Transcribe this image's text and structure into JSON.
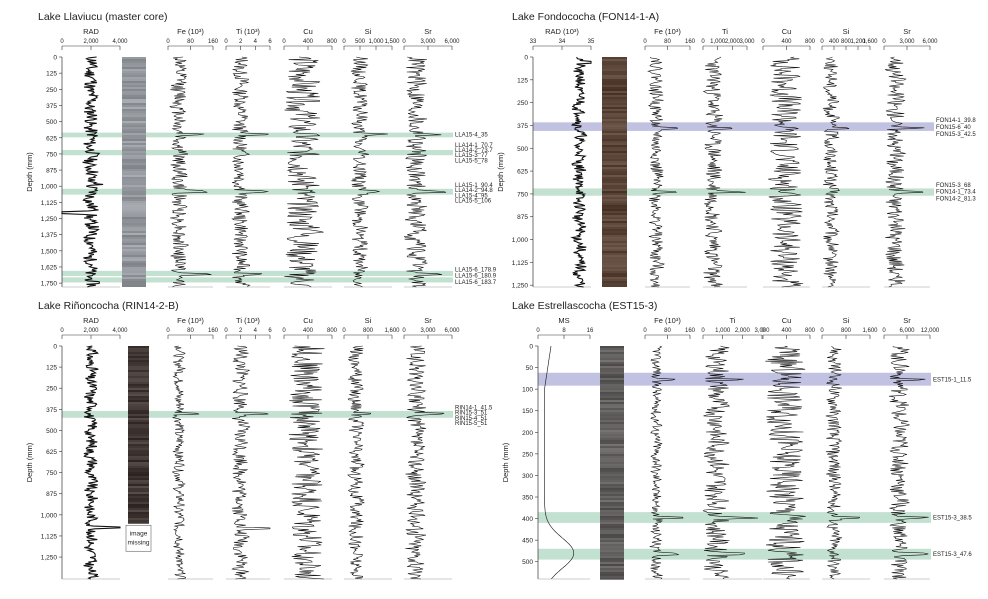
{
  "colors": {
    "green_band": "#b9dcc8",
    "blue_band": "#b6b6dc",
    "trace": "#111111",
    "axis": "#333333"
  },
  "chart_data": [
    {
      "type": "line",
      "title": "Lake Llaviucu (master core)",
      "ylabel": "Depth (mm)",
      "ylim": [
        0,
        1780
      ],
      "yticks": [
        0,
        125,
        250,
        375,
        500,
        625,
        750,
        875,
        "1,000",
        "1,125",
        "1,250",
        "1,375",
        "1,500",
        "1,625",
        "1,750"
      ],
      "ytick_values": [
        0,
        125,
        250,
        375,
        500,
        625,
        750,
        875,
        1000,
        1125,
        1250,
        1375,
        1500,
        1625,
        1750
      ],
      "core_image": "core photo",
      "series": [
        {
          "name": "RAD",
          "xlim": [
            0,
            4000
          ],
          "xticks": [
            "0",
            "2,000",
            "4,000"
          ],
          "baseline": 2000,
          "amp": 0.12,
          "seed": 11,
          "spikes": [
            [
              1205,
              -0.45
            ],
            [
              980,
              0.15
            ]
          ]
        },
        {
          "name": "Fe (10³)",
          "xlim": [
            0,
            160
          ],
          "xticks": [
            "0",
            "80",
            "160"
          ],
          "baseline": 40,
          "amp": 0.18,
          "seed": 12,
          "spikes": [
            [
              600,
              0.45
            ],
            [
              1040,
              0.5
            ],
            [
              1680,
              0.6
            ]
          ]
        },
        {
          "name": "Ti (10³)",
          "xlim": [
            0,
            6
          ],
          "xticks": [
            "0",
            "2",
            "4",
            "6"
          ],
          "baseline": 2,
          "amp": 0.18,
          "seed": 13,
          "spikes": [
            [
              600,
              0.5
            ],
            [
              1040,
              0.55
            ],
            [
              1680,
              0.6
            ]
          ]
        },
        {
          "name": "Cu",
          "xlim": [
            0,
            800
          ],
          "xticks": [
            "0",
            "400",
            "800"
          ],
          "baseline": 300,
          "amp": 0.35,
          "seed": 14,
          "spikes": [
            [
              1000,
              0.4
            ],
            [
              1350,
              0.5
            ]
          ]
        },
        {
          "name": "Si",
          "xlim": [
            0,
            1500
          ],
          "xticks": [
            "0",
            "500",
            "1,000",
            "1,500"
          ],
          "baseline": 500,
          "amp": 0.16,
          "seed": 15,
          "spikes": [
            [
              600,
              0.4
            ],
            [
              1040,
              0.3
            ]
          ]
        },
        {
          "name": "Sr",
          "xlim": [
            0,
            6000
          ],
          "xticks": [
            "0",
            "3,000",
            "6,000"
          ],
          "baseline": 1500,
          "amp": 0.22,
          "seed": 16,
          "spikes": [
            [
              600,
              0.5
            ],
            [
              1040,
              0.4
            ],
            [
              1680,
              0.6
            ]
          ]
        }
      ],
      "bands": [
        {
          "from": 585,
          "to": 622,
          "color": "green"
        },
        {
          "from": 720,
          "to": 760,
          "color": "green"
        },
        {
          "from": 1020,
          "to": 1065,
          "color": "green"
        },
        {
          "from": 1655,
          "to": 1695,
          "color": "green"
        },
        {
          "from": 1705,
          "to": 1745,
          "color": "green"
        }
      ],
      "annotations": [
        {
          "text": "LLA15-4_35",
          "depth": 600
        },
        {
          "text": "LLA14-1_70.7",
          "depth": 680
        },
        {
          "text": "LLA14-2_73.7",
          "depth": 720
        },
        {
          "text": "LLA15-3_77",
          "depth": 760
        },
        {
          "text": "LLA15-5_78",
          "depth": 800
        },
        {
          "text": "LLA15-1_90.4",
          "depth": 990
        },
        {
          "text": "LLA14-2_94.8",
          "depth": 1030
        },
        {
          "text": "LLA15-4_95",
          "depth": 1070
        },
        {
          "text": "LLA15-5_106",
          "depth": 1110
        },
        {
          "text": "LLA15-6_178.9",
          "depth": 1645
        },
        {
          "text": "LLA15-6_180.9",
          "depth": 1690
        },
        {
          "text": "LLA15-6_183.7",
          "depth": 1740
        }
      ]
    },
    {
      "type": "line",
      "title": "Lake Fondococha (FON14-1-A)",
      "ylabel": "Depth (mm)",
      "ylim": [
        0,
        1260
      ],
      "yticks": [
        0,
        125,
        250,
        375,
        500,
        625,
        750,
        875,
        "1,000",
        "1,125",
        "1,250"
      ],
      "ytick_values": [
        0,
        125,
        250,
        375,
        500,
        625,
        750,
        875,
        1000,
        1125,
        1250
      ],
      "core_image": "core photo",
      "series": [
        {
          "name": "RAD (10³)",
          "xlim": [
            33,
            35
          ],
          "xticks": [
            "33",
            "34",
            "35"
          ],
          "baseline": 34.6,
          "amp": 0.1,
          "seed": 21,
          "spikes": [
            [
              30,
              0.3
            ]
          ]
        },
        {
          "name": "Fe (10³)",
          "xlim": [
            0,
            160
          ],
          "xticks": [
            "0",
            "80",
            "160"
          ],
          "baseline": 40,
          "amp": 0.15,
          "seed": 22,
          "spikes": [
            [
              390,
              0.4
            ],
            [
              740,
              0.5
            ]
          ]
        },
        {
          "name": "Ti",
          "xlim": [
            0,
            3000
          ],
          "xticks": [
            "0",
            "1,000",
            "2,000",
            "3,000"
          ],
          "baseline": 700,
          "amp": 0.2,
          "seed": 23,
          "spikes": [
            [
              390,
              0.5
            ],
            [
              740,
              0.6
            ]
          ]
        },
        {
          "name": "Cu",
          "xlim": [
            0,
            800
          ],
          "xticks": [
            "0",
            "400",
            "800"
          ],
          "baseline": 380,
          "amp": 0.35,
          "seed": 24,
          "spikes": []
        },
        {
          "name": "Si",
          "xlim": [
            0,
            1600
          ],
          "xticks": [
            "0",
            "400",
            "800",
            "1,200",
            "1,600"
          ],
          "baseline": 300,
          "amp": 0.15,
          "seed": 25,
          "spikes": [
            [
              390,
              0.4
            ]
          ]
        },
        {
          "name": "Sr",
          "xlim": [
            0,
            6000
          ],
          "xticks": [
            "0",
            "3,000",
            "6,000"
          ],
          "baseline": 1500,
          "amp": 0.2,
          "seed": 26,
          "spikes": [
            [
              390,
              0.5
            ],
            [
              740,
              0.6
            ]
          ]
        }
      ],
      "bands": [
        {
          "from": 358,
          "to": 405,
          "color": "blue"
        },
        {
          "from": 720,
          "to": 760,
          "color": "green"
        }
      ],
      "annotations": [
        {
          "text": "FON14-1_39.8",
          "depth": 345
        },
        {
          "text": "FON15-6_40",
          "depth": 383
        },
        {
          "text": "FON15-3_42.5",
          "depth": 421
        },
        {
          "text": "FON15-3_68",
          "depth": 700
        },
        {
          "text": "FON14-1_73.4",
          "depth": 738
        },
        {
          "text": "FON14-2_81.3",
          "depth": 776
        }
      ]
    },
    {
      "type": "line",
      "title": "Lake Riñoncocha (RIN14-2-B)",
      "ylabel": "Depth (mm)",
      "ylim": [
        0,
        1380
      ],
      "yticks": [
        0,
        125,
        250,
        375,
        500,
        625,
        750,
        875,
        "1,000",
        "1,125",
        "1,250"
      ],
      "ytick_values": [
        0,
        125,
        250,
        375,
        500,
        625,
        750,
        875,
        1000,
        1125,
        1250
      ],
      "core_image": "core photo",
      "core_missing_label": [
        "image",
        "missing"
      ],
      "series": [
        {
          "name": "RAD",
          "xlim": [
            0,
            4000
          ],
          "xticks": [
            "0",
            "2,000",
            "4,000"
          ],
          "baseline": 2000,
          "amp": 0.1,
          "seed": 31,
          "spikes": [
            [
              1075,
              0.7
            ]
          ]
        },
        {
          "name": "Fe (10³)",
          "xlim": [
            0,
            160
          ],
          "xticks": [
            "0",
            "80",
            "160"
          ],
          "baseline": 40,
          "amp": 0.12,
          "seed": 32,
          "spikes": [
            [
              400,
              0.4
            ]
          ]
        },
        {
          "name": "Ti (10³)",
          "xlim": [
            0,
            6
          ],
          "xticks": [
            "0",
            "2",
            "4",
            "6"
          ],
          "baseline": 2,
          "amp": 0.18,
          "seed": 33,
          "spikes": [
            [
              400,
              0.5
            ],
            [
              1080,
              0.6
            ]
          ]
        },
        {
          "name": "Cu",
          "xlim": [
            0,
            800
          ],
          "xticks": [
            "0",
            "400",
            "800"
          ],
          "baseline": 380,
          "amp": 0.35,
          "seed": 34,
          "spikes": []
        },
        {
          "name": "Si",
          "xlim": [
            0,
            1600
          ],
          "xticks": [
            "0",
            "800",
            "1,600"
          ],
          "baseline": 400,
          "amp": 0.15,
          "seed": 35,
          "spikes": [
            [
              400,
              0.4
            ]
          ]
        },
        {
          "name": "Sr",
          "xlim": [
            0,
            6000
          ],
          "xticks": [
            "0",
            "3,000",
            "6,000"
          ],
          "baseline": 1500,
          "amp": 0.2,
          "seed": 36,
          "spikes": [
            [
              400,
              0.6
            ]
          ]
        }
      ],
      "bands": [
        {
          "from": 385,
          "to": 425,
          "color": "green"
        }
      ],
      "annotations": [
        {
          "text": "RIN14-1_41.5",
          "depth": 365
        },
        {
          "text": "RIN15-3_51",
          "depth": 395
        },
        {
          "text": "RIN15-4_51",
          "depth": 425
        },
        {
          "text": "RIN15-5_51",
          "depth": 455
        }
      ]
    },
    {
      "type": "line",
      "title": "Lake Estrellascocha (EST15-3)",
      "ylabel": "Depth (mm)",
      "ylim": [
        0,
        540
      ],
      "yticks": [
        0,
        50,
        100,
        150,
        200,
        250,
        300,
        350,
        400,
        450,
        500,
        550
      ],
      "ytick_values": [
        0,
        50,
        100,
        150,
        200,
        250,
        300,
        350,
        400,
        450,
        500,
        550
      ],
      "core_image": "core photo",
      "series": [
        {
          "name": "MS",
          "xlim": [
            0,
            16
          ],
          "xticks": [
            "0",
            "8",
            "16"
          ],
          "baseline": 2,
          "amp": 0.02,
          "seed": 41,
          "spikes": [],
          "smooth": true
        },
        {
          "name": "Fe (10³)",
          "xlim": [
            0,
            160
          ],
          "xticks": [
            "0",
            "80",
            "160"
          ],
          "baseline": 40,
          "amp": 0.12,
          "seed": 42,
          "spikes": [
            [
              78,
              0.5
            ],
            [
              398,
              0.5
            ],
            [
              482,
              0.5
            ]
          ]
        },
        {
          "name": "Ti",
          "xlim": [
            0,
            3000
          ],
          "xticks": [
            "0",
            "1,000",
            "2,000",
            "3,000"
          ],
          "baseline": 700,
          "amp": 0.2,
          "seed": 43,
          "spikes": [
            [
              78,
              0.5
            ],
            [
              398,
              0.6
            ],
            [
              482,
              0.5
            ]
          ]
        },
        {
          "name": "Cu",
          "xlim": [
            0,
            800
          ],
          "xticks": [
            "0",
            "400",
            "800"
          ],
          "baseline": 380,
          "amp": 0.4,
          "seed": 44,
          "spikes": [
            [
              395,
              0.4
            ]
          ]
        },
        {
          "name": "Si",
          "xlim": [
            0,
            1600
          ],
          "xticks": [
            "0",
            "800",
            "1,600"
          ],
          "baseline": 400,
          "amp": 0.15,
          "seed": 45,
          "spikes": [
            [
              398,
              0.5
            ]
          ]
        },
        {
          "name": "Sr",
          "xlim": [
            0,
            12000
          ],
          "xticks": [
            "0",
            "6,000",
            "12,000"
          ],
          "baseline": 4000,
          "amp": 0.2,
          "seed": 46,
          "spikes": [
            [
              78,
              0.4
            ],
            [
              398,
              0.5
            ],
            [
              482,
              0.5
            ]
          ]
        }
      ],
      "bands": [
        {
          "from": 62,
          "to": 92,
          "color": "blue"
        },
        {
          "from": 385,
          "to": 410,
          "color": "green"
        },
        {
          "from": 470,
          "to": 495,
          "color": "green"
        }
      ],
      "annotations": [
        {
          "text": "EST15-1_11.5",
          "depth": 78
        },
        {
          "text": "EST15-3_38.5",
          "depth": 398
        },
        {
          "text": "EST15-3_47.6",
          "depth": 482
        }
      ]
    }
  ]
}
